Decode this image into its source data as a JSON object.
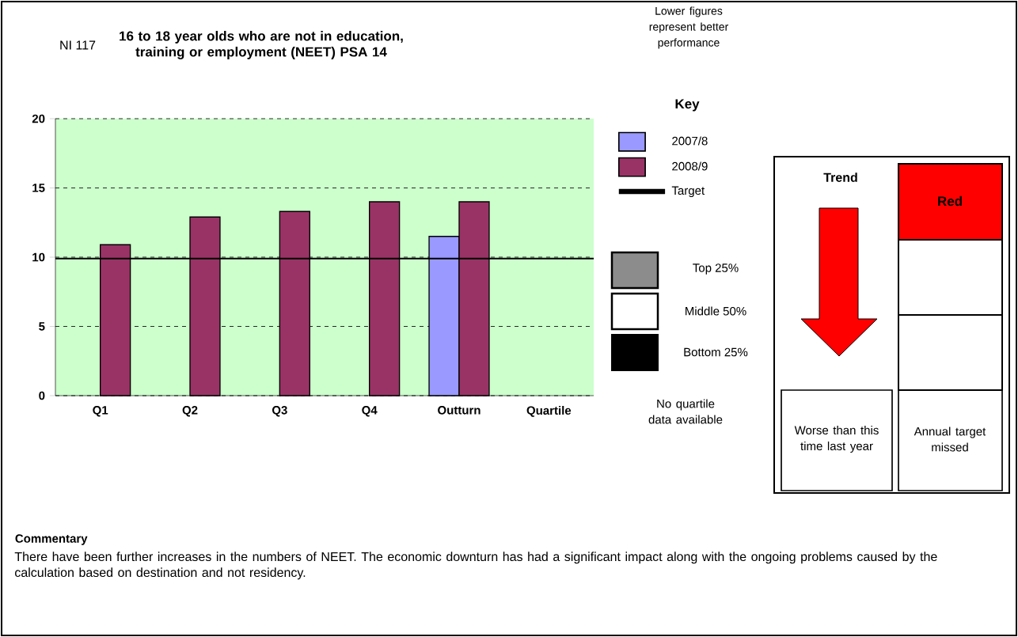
{
  "chart_data": {
    "type": "bar",
    "title": "16 to 18 year olds who are not in education, training or employment (NEET) PSA 14",
    "categories": [
      "Q1",
      "Q2",
      "Q3",
      "Q4",
      "Outturn",
      "Quartile"
    ],
    "series": [
      {
        "name": "2007/8",
        "color": "#9999ff",
        "values": [
          null,
          null,
          null,
          null,
          11.5,
          null
        ]
      },
      {
        "name": "2008/9",
        "color": "#993366",
        "values": [
          10.9,
          12.9,
          13.3,
          14.0,
          14.0,
          null
        ]
      }
    ],
    "ylim": [
      0,
      20
    ],
    "yticks": [
      0,
      5,
      10,
      15,
      20
    ],
    "grid": "y",
    "legend": "right",
    "legend_title": "Key",
    "ref_lines": [
      {
        "axis": "y",
        "value": 9.9,
        "label": "Target",
        "color": "#000000"
      }
    ],
    "annotations": [
      "NI 117",
      "Lower figures represent better performance",
      "Top 25%",
      "Middle 50%",
      "Bottom 25%",
      "No quartile data available",
      "Trend",
      "Worse than this time last year",
      "Red",
      "Annual target missed",
      "Commentary",
      "There have been further increases in the numbers of NEET.  The economic downturn has had a significant impact along with the ongoing problems caused by the calculation based on destination and not residency."
    ]
  }
}
